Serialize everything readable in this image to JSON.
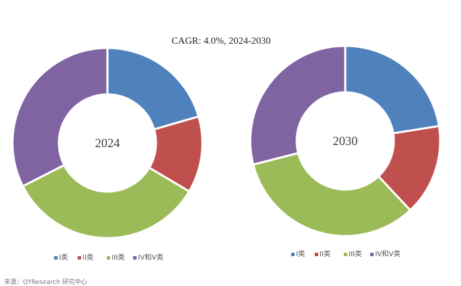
{
  "chart_data": {
    "type": "pie",
    "subtype": "donut",
    "title": "CAGR:   4.0%, 2024-2030",
    "categories": [
      "I类",
      "II类",
      "III类",
      "IV和V类"
    ],
    "colors": [
      "#4f81bd",
      "#c0504d",
      "#9bbb59",
      "#8064a2"
    ],
    "charts": [
      {
        "label": "2024",
        "values": [
          20.5,
          13,
          34,
          32.5
        ]
      },
      {
        "label": "2030",
        "values": [
          22.5,
          15.5,
          33,
          29
        ]
      }
    ]
  },
  "source": "来源：QYResearch 研究中心"
}
